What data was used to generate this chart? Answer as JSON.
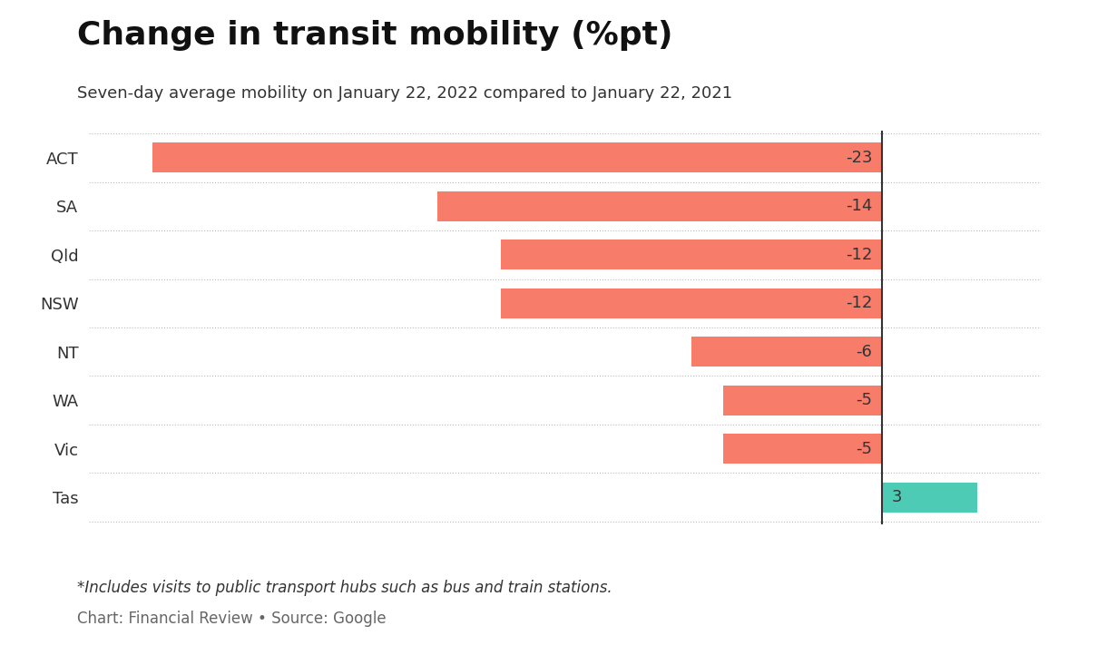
{
  "title": "Change in transit mobility (%pt)",
  "subtitle": "Seven-day average mobility on January 22, 2022 compared to January 22, 2021",
  "categories": [
    "ACT",
    "SA",
    "Qld",
    "NSW",
    "NT",
    "WA",
    "Vic",
    "Tas"
  ],
  "values": [
    -23,
    -14,
    -12,
    -12,
    -6,
    -5,
    -5,
    3
  ],
  "bar_colors": [
    "#f87c6a",
    "#f87c6a",
    "#f87c6a",
    "#f87c6a",
    "#f87c6a",
    "#f87c6a",
    "#f87c6a",
    "#4ecbb4"
  ],
  "xlim": [
    -25,
    5
  ],
  "footnote": "*Includes visits to public transport hubs such as bus and train stations.",
  "source": "Chart: Financial Review • Source: Google",
  "background_color": "#ffffff",
  "title_fontsize": 26,
  "subtitle_fontsize": 13,
  "label_fontsize": 13,
  "value_fontsize": 13,
  "footnote_fontsize": 12,
  "source_fontsize": 12,
  "bar_height": 0.62,
  "grid_color": "#bbbbbb",
  "text_color": "#333333",
  "zero_line_color": "#333333"
}
